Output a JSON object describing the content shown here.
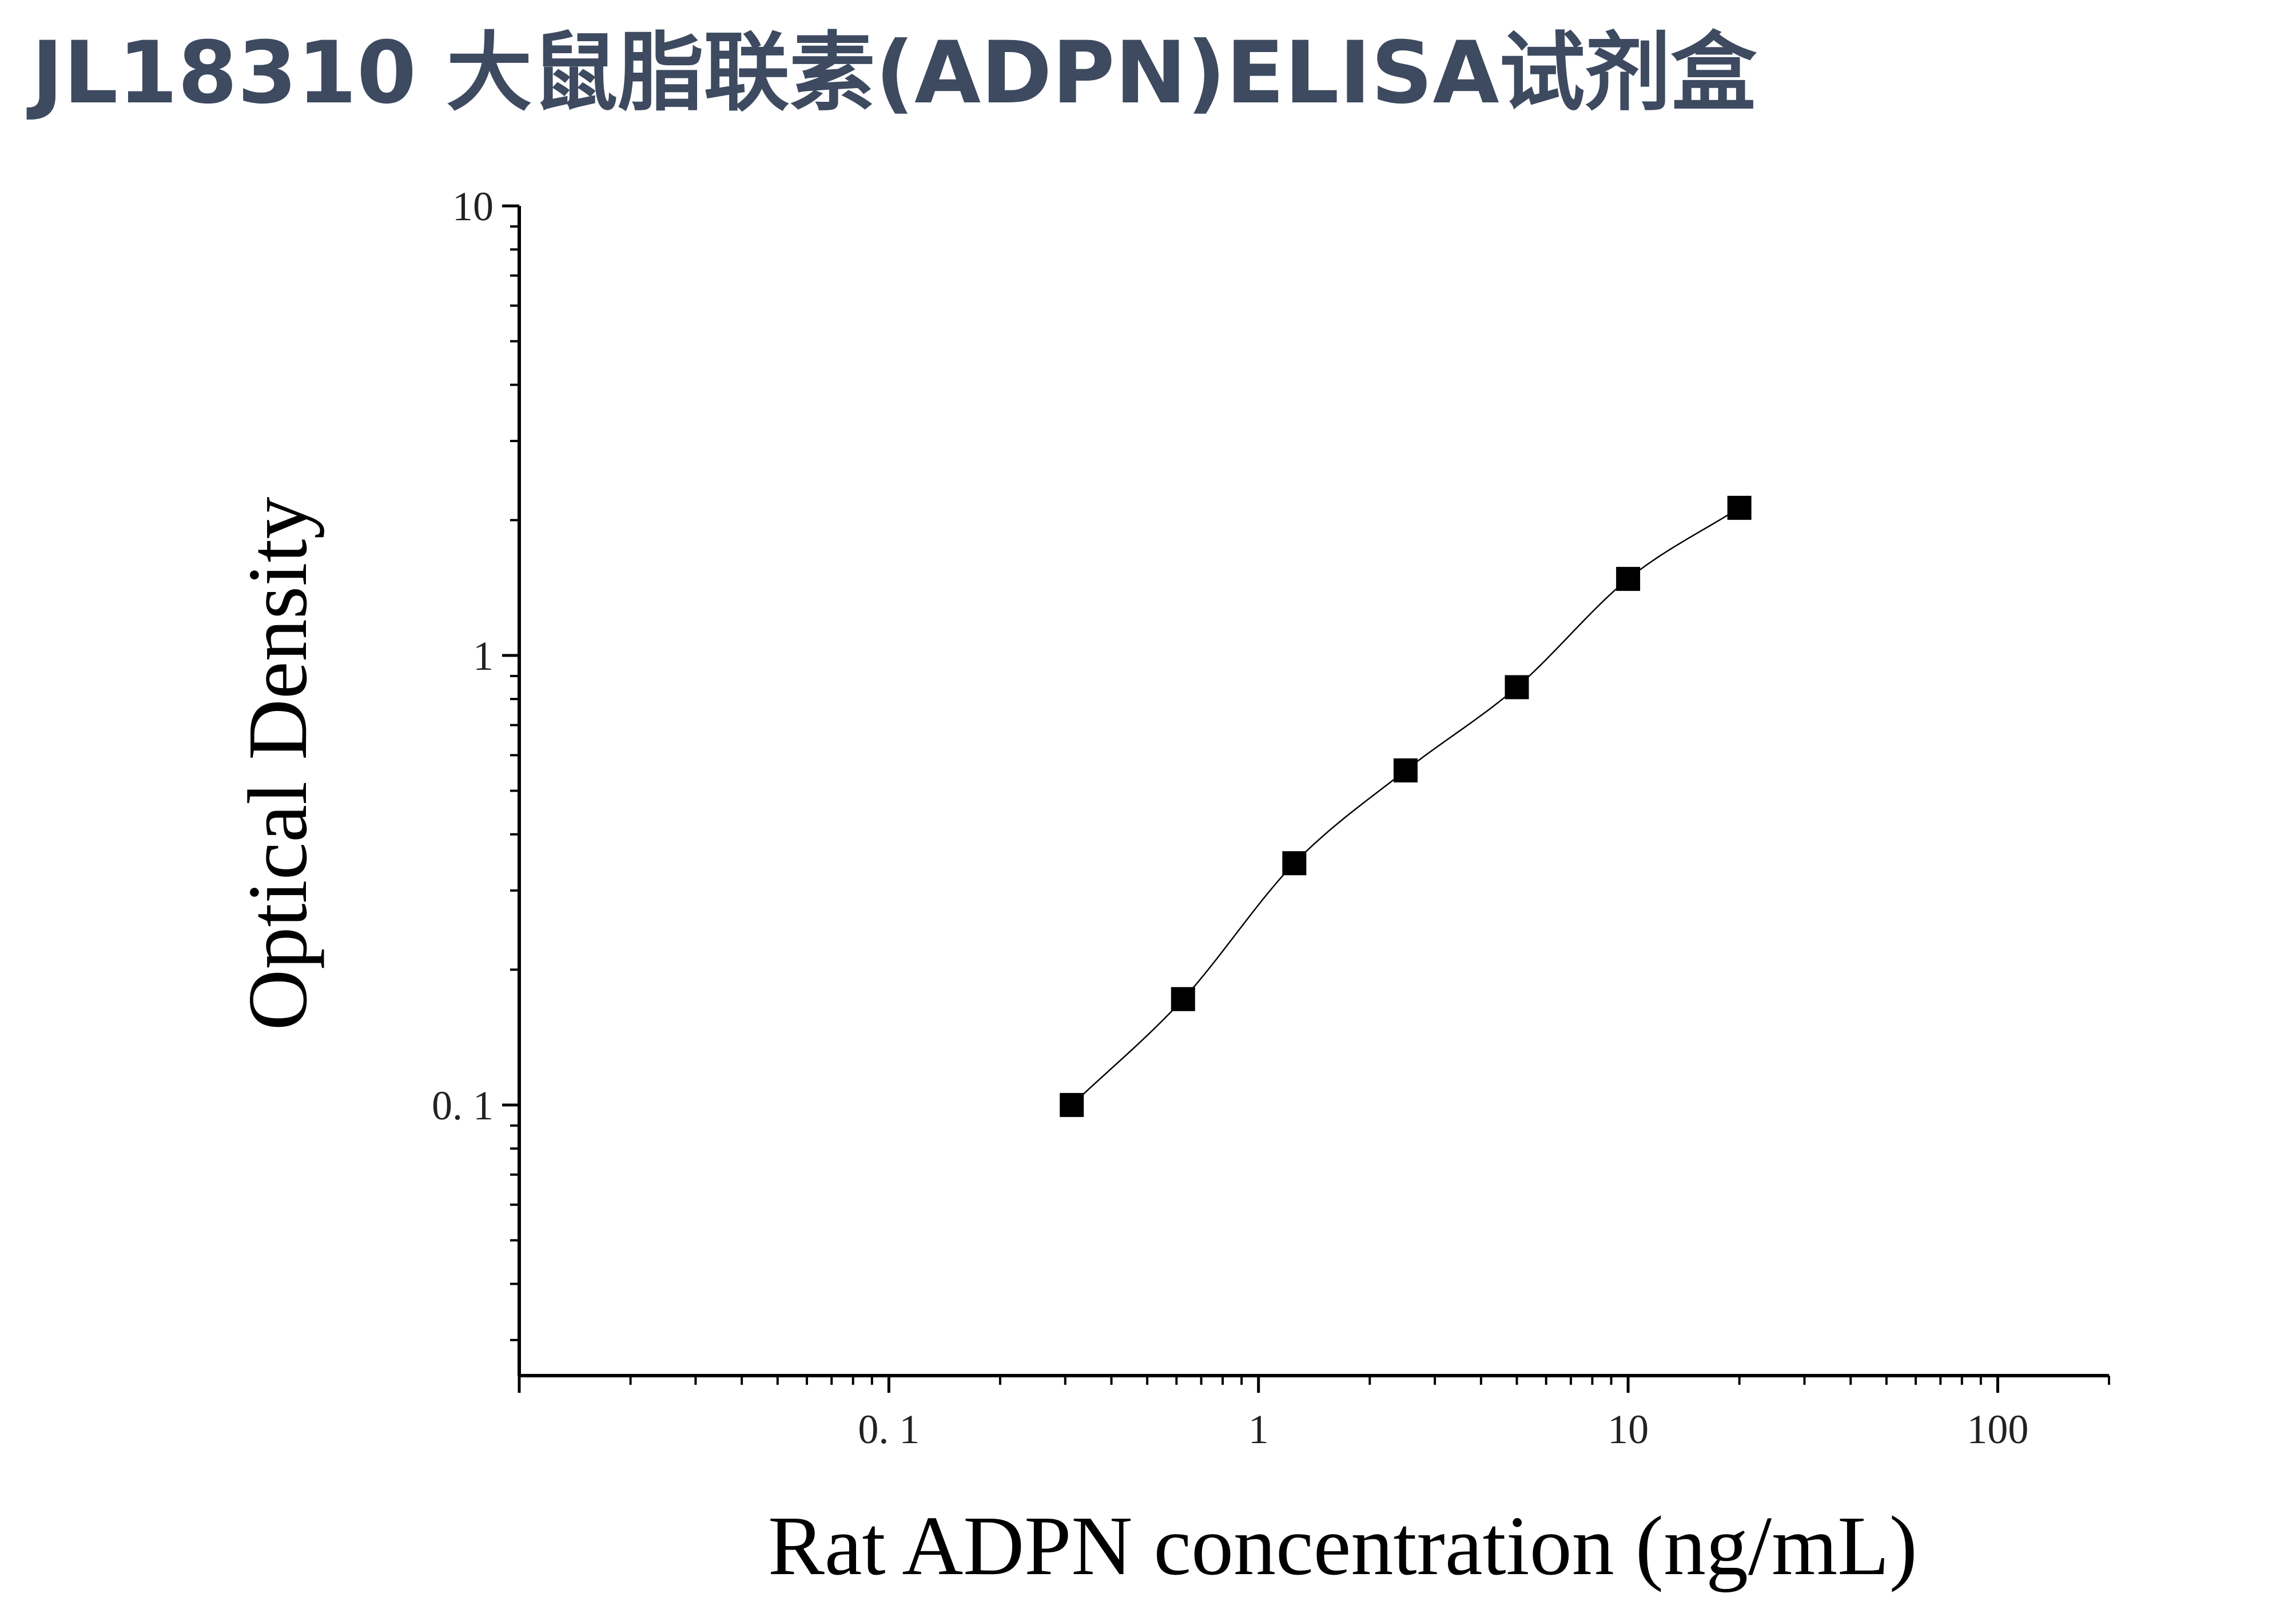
{
  "page": {
    "title": "JL18310 大鼠脂联素(ADPN)ELISA试剂盒",
    "title_color": "#3d4a60"
  },
  "chart_data": {
    "type": "scatter",
    "xlabel": "Rat ADPN concentration (ng/mL)",
    "ylabel": "Optical Density",
    "x_scale": "log",
    "y_scale": "log",
    "xlim": [
      0.01,
      200
    ],
    "ylim": [
      0.025,
      10
    ],
    "x_ticks": [
      {
        "value": 0.1,
        "label": "0. 1"
      },
      {
        "value": 1,
        "label": "1"
      },
      {
        "value": 10,
        "label": "10"
      },
      {
        "value": 100,
        "label": "100"
      }
    ],
    "y_ticks": [
      {
        "value": 0.1,
        "label": "0. 1"
      },
      {
        "value": 1,
        "label": "1"
      },
      {
        "value": 10,
        "label": "10"
      }
    ],
    "grid": false,
    "marker": "square",
    "marker_color": "#000000",
    "fit_curve": true,
    "points": [
      {
        "x": 0.3125,
        "y": 0.1
      },
      {
        "x": 0.625,
        "y": 0.172
      },
      {
        "x": 1.25,
        "y": 0.345
      },
      {
        "x": 2.5,
        "y": 0.555
      },
      {
        "x": 5,
        "y": 0.85
      },
      {
        "x": 10,
        "y": 1.48
      },
      {
        "x": 20,
        "y": 2.13
      }
    ]
  }
}
